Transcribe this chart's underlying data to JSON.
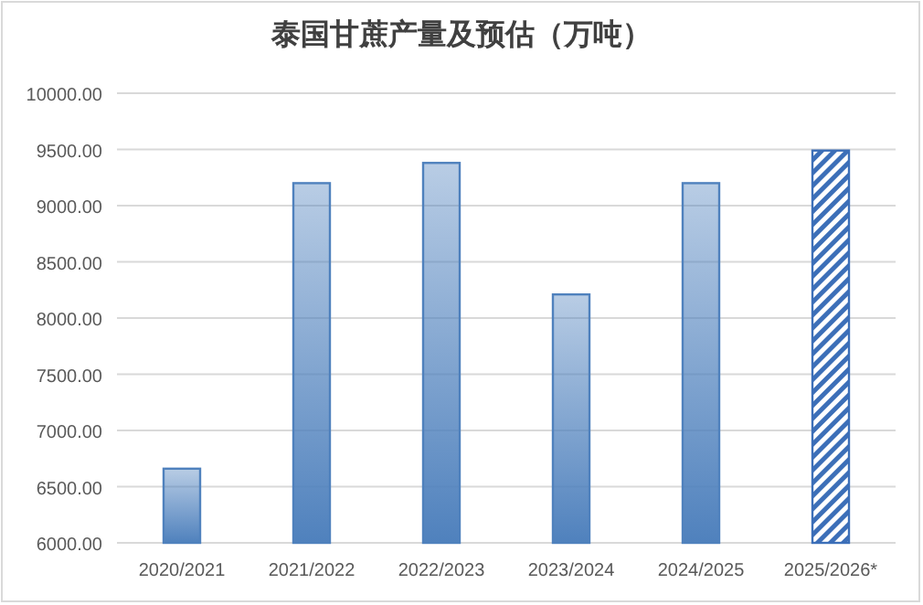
{
  "chart_data": {
    "type": "bar",
    "title": "泰国甘蔗产量及预估（万吨）",
    "categories": [
      "2020/2021",
      "2021/2022",
      "2022/2023",
      "2023/2024",
      "2024/2025",
      "2025/2026*"
    ],
    "values": [
      6660,
      9200,
      9380,
      8210,
      9200,
      9490
    ],
    "colors": [
      "#4f81bd",
      "#4f81bd",
      "#4f81bd",
      "#4f81bd",
      "#4f81bd",
      "#3c6fb8"
    ],
    "ylim": [
      6000,
      10000
    ],
    "yticks": [
      {
        "value": 6000,
        "label": "6000.00"
      },
      {
        "value": 6500,
        "label": "6500.00"
      },
      {
        "value": 7000,
        "label": "7000.00"
      },
      {
        "value": 7500,
        "label": "7500.00"
      },
      {
        "value": 8000,
        "label": "8000.00"
      },
      {
        "value": 8500,
        "label": "8500.00"
      },
      {
        "value": 9000,
        "label": "9000.00"
      },
      {
        "value": 9500,
        "label": "9500.00"
      },
      {
        "value": 10000,
        "label": "10000.00"
      }
    ],
    "grid": "y"
  }
}
